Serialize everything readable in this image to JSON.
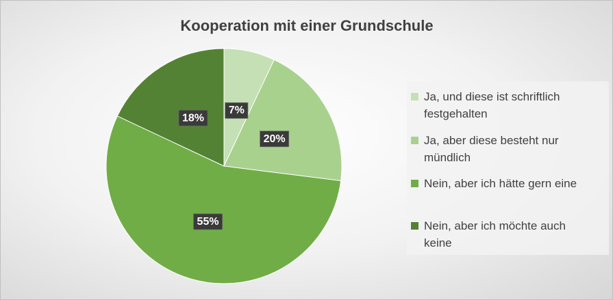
{
  "chart_data": {
    "type": "pie",
    "title": "Kooperation mit einer Grundschule",
    "categories": [
      "Ja, und diese ist schriftlich festgehalten",
      "Ja, aber diese besteht nur mündlich",
      "Nein, aber ich hätte gern eine",
      "Nein, aber ich möchte auch keine"
    ],
    "values": [
      7,
      20,
      55,
      18
    ],
    "value_labels": [
      "7%",
      "20%",
      "55%",
      "18%"
    ],
    "colors": [
      "#c5e0b4",
      "#a9d18e",
      "#70ad47",
      "#548235"
    ],
    "legend": "right"
  }
}
